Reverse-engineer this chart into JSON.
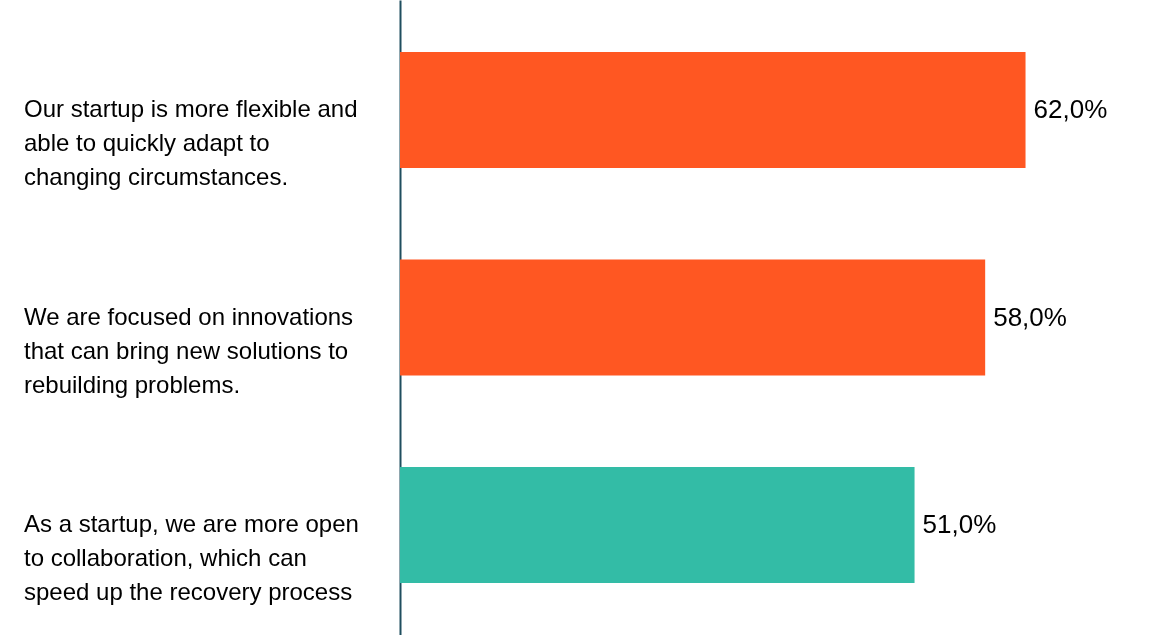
{
  "chart_data": {
    "type": "bar",
    "orientation": "horizontal",
    "categories": [
      "Our startup is more flexible and able to quickly adapt to changing circumstances.",
      "We are focused on innovations that can bring new solutions to rebuilding problems.",
      "As a startup, we are more open to collaboration, which can speed up the recovery process"
    ],
    "values": [
      62,
      58,
      51
    ],
    "colors": [
      "#ff5722",
      "#ff5722",
      "#33bca6"
    ],
    "value_labels": [
      "62,0%",
      "58,0%",
      "51,0%"
    ]
  }
}
